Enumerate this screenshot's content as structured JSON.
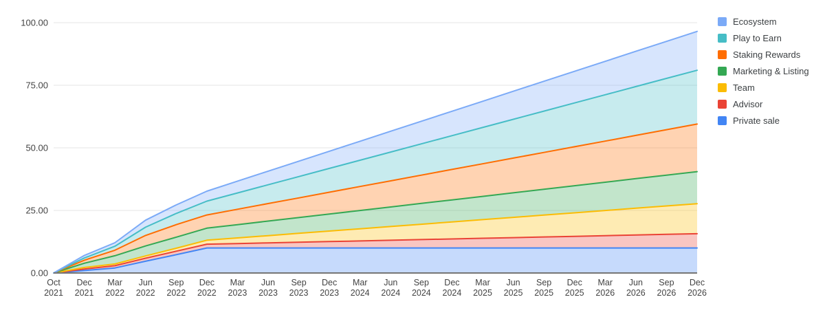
{
  "styles": {
    "background": "#ffffff",
    "axis_label_color": "#434343",
    "legend_text_color": "#3c4043",
    "gridline_color": "#e6e6e6",
    "baseline_color": "#757575",
    "fill_opacity": 0.3,
    "line_width": 2
  },
  "chart_data": {
    "type": "area",
    "stacked": true,
    "title": "",
    "xlabel": "",
    "ylabel": "",
    "legend_position": "right",
    "grid": true,
    "x_labels": [
      "Oct 2021",
      "Dec 2021",
      "Mar 2022",
      "Jun 2022",
      "Sep 2022",
      "Dec 2022",
      "Mar 2023",
      "Jun 2023",
      "Sep 2023",
      "Dec 2023",
      "Mar 2024",
      "Jun 2024",
      "Sep 2024",
      "Dec 2024",
      "Mar 2025",
      "Jun 2025",
      "Sep 2025",
      "Dec 2025",
      "Mar 2026",
      "Jun 2026",
      "Sep 2026",
      "Dec 2026"
    ],
    "y_axis": {
      "range": [
        0,
        100
      ],
      "ticks": [
        0,
        25,
        50,
        75,
        100
      ],
      "tick_labels": [
        "0.00",
        "25.00",
        "50.00",
        "75.00",
        "100.00"
      ]
    },
    "legend_top_to_bottom": [
      "Ecosystem",
      "Play to Earn",
      "Staking Rewards",
      "Marketing & Listing",
      "Team",
      "Advisor",
      "Private sale"
    ],
    "series_bottom_to_top": [
      {
        "name": "Private sale",
        "color": "#4285F4",
        "values": [
          0,
          1,
          2,
          4.7,
          7.3,
          10,
          10,
          10,
          10,
          10,
          10,
          10,
          10,
          10,
          10,
          10,
          10,
          10,
          10,
          10,
          10,
          10
        ]
      },
      {
        "name": "Advisor",
        "color": "#EA4335",
        "values": [
          0,
          0.6,
          0.9,
          1.2,
          1.4,
          1.5,
          1.76,
          2.03,
          2.29,
          2.55,
          2.81,
          3.08,
          3.34,
          3.6,
          3.86,
          4.13,
          4.39,
          4.65,
          4.91,
          5.18,
          5.44,
          5.7
        ]
      },
      {
        "name": "Team",
        "color": "#FBBC04",
        "values": [
          0,
          0.6,
          0.7,
          0.9,
          1.2,
          1.6,
          2.25,
          2.9,
          3.55,
          4.2,
          4.85,
          5.5,
          6.15,
          6.8,
          7.45,
          8.1,
          8.75,
          9.4,
          10.05,
          10.7,
          11.35,
          12
        ]
      },
      {
        "name": "Marketing & Listing",
        "color": "#34A853",
        "values": [
          0,
          1.7,
          3.3,
          4,
          4.4,
          4.8,
          5.3,
          5.8,
          6.3,
          6.8,
          7.3,
          7.8,
          8.3,
          8.8,
          9.3,
          9.8,
          10.3,
          10.8,
          11.3,
          11.8,
          12.3,
          12.8
        ]
      },
      {
        "name": "Staking Rewards",
        "color": "#FF6D01",
        "values": [
          0,
          1.2,
          2.2,
          4.2,
          5,
          5.3,
          6.16,
          7.02,
          7.87,
          8.73,
          9.59,
          10.44,
          11.3,
          12.16,
          13.01,
          13.87,
          14.73,
          15.58,
          16.44,
          17.3,
          18.15,
          19
        ]
      },
      {
        "name": "Play to Earn",
        "color": "#46BDC6",
        "values": [
          0,
          0.9,
          1.6,
          3.3,
          4.5,
          5.5,
          6.5,
          7.5,
          8.5,
          9.5,
          10.5,
          11.5,
          12.5,
          13.5,
          14.5,
          15.5,
          16.5,
          17.5,
          18.5,
          19.5,
          20.5,
          21.5
        ]
      },
      {
        "name": "Ecosystem",
        "color": "#7BAAF7",
        "values": [
          0,
          1,
          1.4,
          2.8,
          3.4,
          4,
          4.72,
          5.44,
          6.16,
          6.88,
          7.6,
          8.32,
          9.04,
          9.76,
          10.48,
          11.2,
          11.92,
          12.64,
          13.36,
          14.08,
          14.8,
          15.5
        ]
      }
    ]
  }
}
